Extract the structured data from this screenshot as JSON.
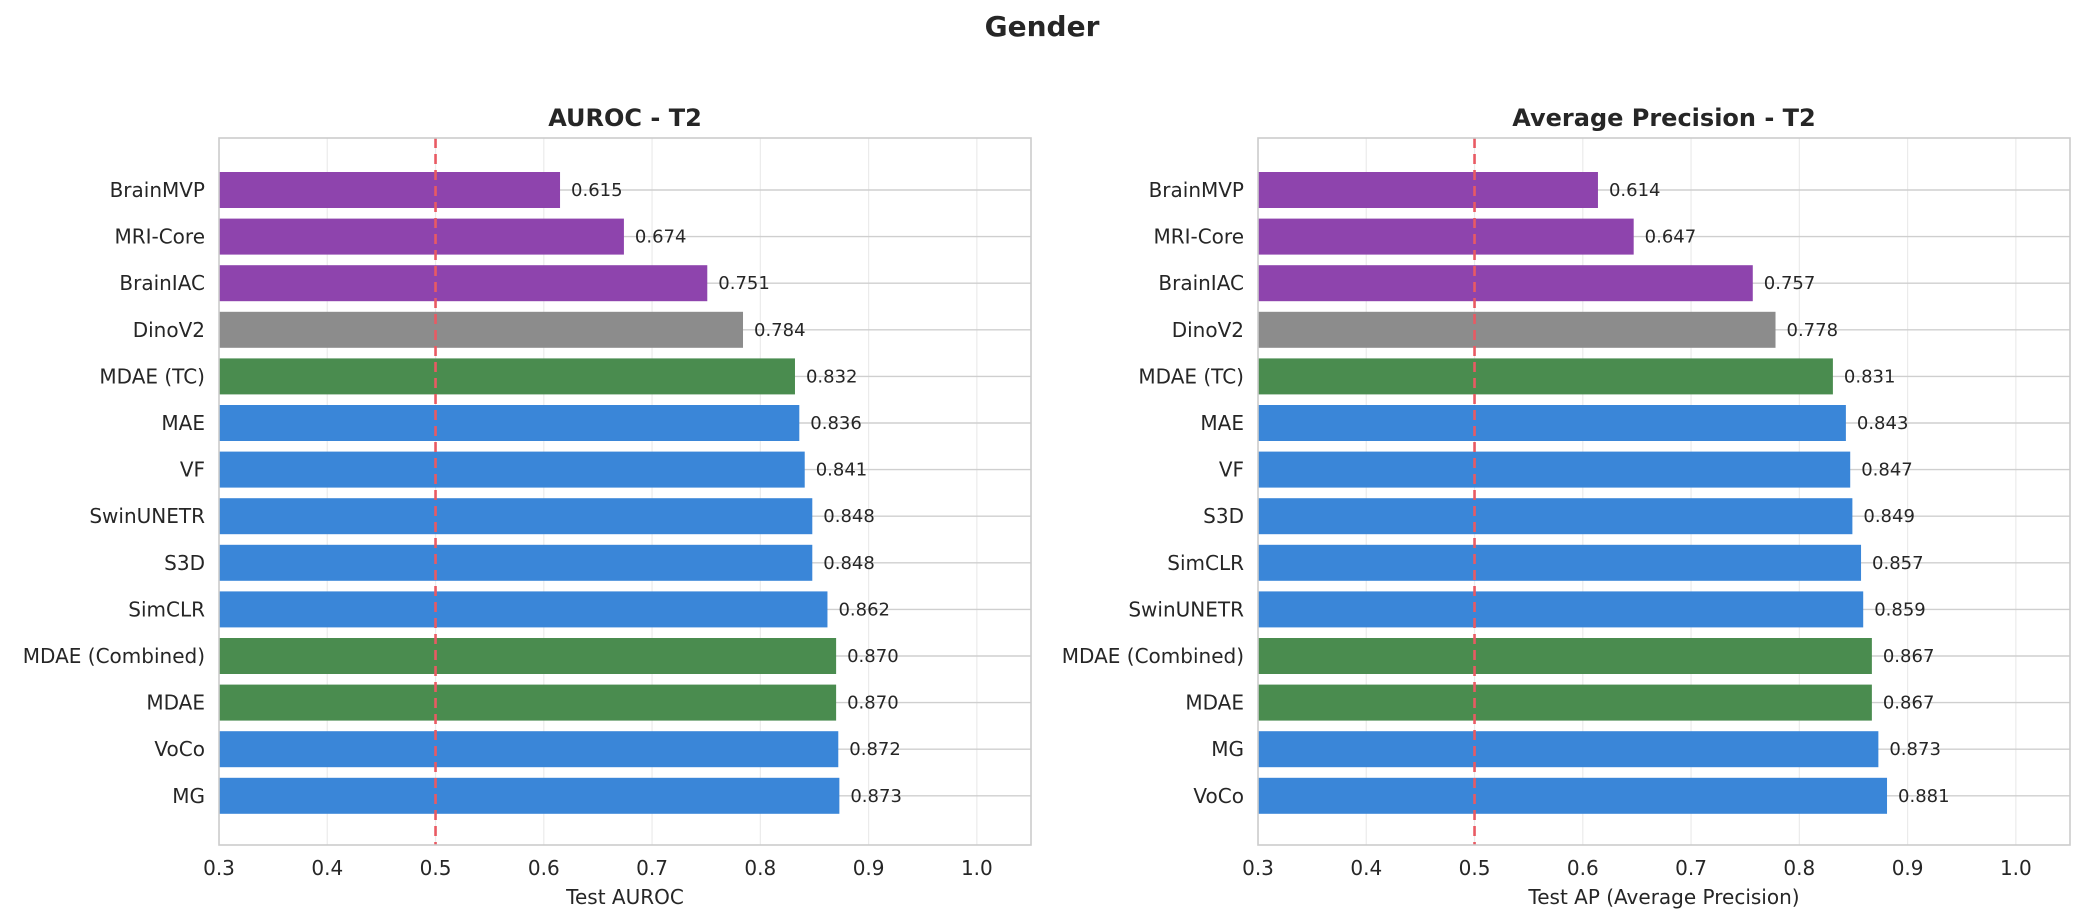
{
  "figure": {
    "title": "Gender"
  },
  "colors": {
    "medical_foundation": "#8e44ad",
    "natural_image": "#8c8c8c",
    "mdae": "#4a8c4f",
    "baseline": "#3a86d8",
    "reference_line": "#e85a63"
  },
  "chart_data": [
    {
      "type": "bar",
      "orientation": "horizontal",
      "title": "AUROC - T2",
      "xlabel": "Test AUROC",
      "ylabel": "",
      "xlim": [
        0.3,
        1.05
      ],
      "xticks": [
        "0.3",
        "0.4",
        "0.5",
        "0.6",
        "0.7",
        "0.8",
        "0.9",
        "1.0"
      ],
      "reference_line": 0.5,
      "grid": true,
      "categories": [
        "BrainMVP",
        "MRI-Core",
        "BrainIAC",
        "DinoV2",
        "MDAE (TC)",
        "MAE",
        "VF",
        "SwinUNETR",
        "S3D",
        "SimCLR",
        "MDAE (Combined)",
        "MDAE",
        "VoCo",
        "MG"
      ],
      "values": [
        0.615,
        0.674,
        0.751,
        0.784,
        0.832,
        0.836,
        0.841,
        0.848,
        0.848,
        0.862,
        0.87,
        0.87,
        0.872,
        0.873
      ],
      "value_labels": [
        "0.615",
        "0.674",
        "0.751",
        "0.784",
        "0.832",
        "0.836",
        "0.841",
        "0.848",
        "0.848",
        "0.862",
        "0.870",
        "0.870",
        "0.872",
        "0.873"
      ],
      "bar_colors": [
        "medical_foundation",
        "medical_foundation",
        "medical_foundation",
        "natural_image",
        "mdae",
        "baseline",
        "baseline",
        "baseline",
        "baseline",
        "baseline",
        "mdae",
        "mdae",
        "baseline",
        "baseline"
      ]
    },
    {
      "type": "bar",
      "orientation": "horizontal",
      "title": "Average Precision - T2",
      "xlabel": "Test AP (Average Precision)",
      "ylabel": "",
      "xlim": [
        0.3,
        1.05
      ],
      "xticks": [
        "0.3",
        "0.4",
        "0.5",
        "0.6",
        "0.7",
        "0.8",
        "0.9",
        "1.0"
      ],
      "reference_line": 0.5,
      "grid": true,
      "categories": [
        "BrainMVP",
        "MRI-Core",
        "BrainIAC",
        "DinoV2",
        "MDAE (TC)",
        "MAE",
        "VF",
        "S3D",
        "SimCLR",
        "SwinUNETR",
        "MDAE (Combined)",
        "MDAE",
        "MG",
        "VoCo"
      ],
      "values": [
        0.614,
        0.647,
        0.757,
        0.778,
        0.831,
        0.843,
        0.847,
        0.849,
        0.857,
        0.859,
        0.867,
        0.867,
        0.873,
        0.881
      ],
      "value_labels": [
        "0.614",
        "0.647",
        "0.757",
        "0.778",
        "0.831",
        "0.843",
        "0.847",
        "0.849",
        "0.857",
        "0.859",
        "0.867",
        "0.867",
        "0.873",
        "0.881"
      ],
      "bar_colors": [
        "medical_foundation",
        "medical_foundation",
        "medical_foundation",
        "natural_image",
        "mdae",
        "baseline",
        "baseline",
        "baseline",
        "baseline",
        "baseline",
        "mdae",
        "mdae",
        "baseline",
        "baseline"
      ]
    }
  ]
}
